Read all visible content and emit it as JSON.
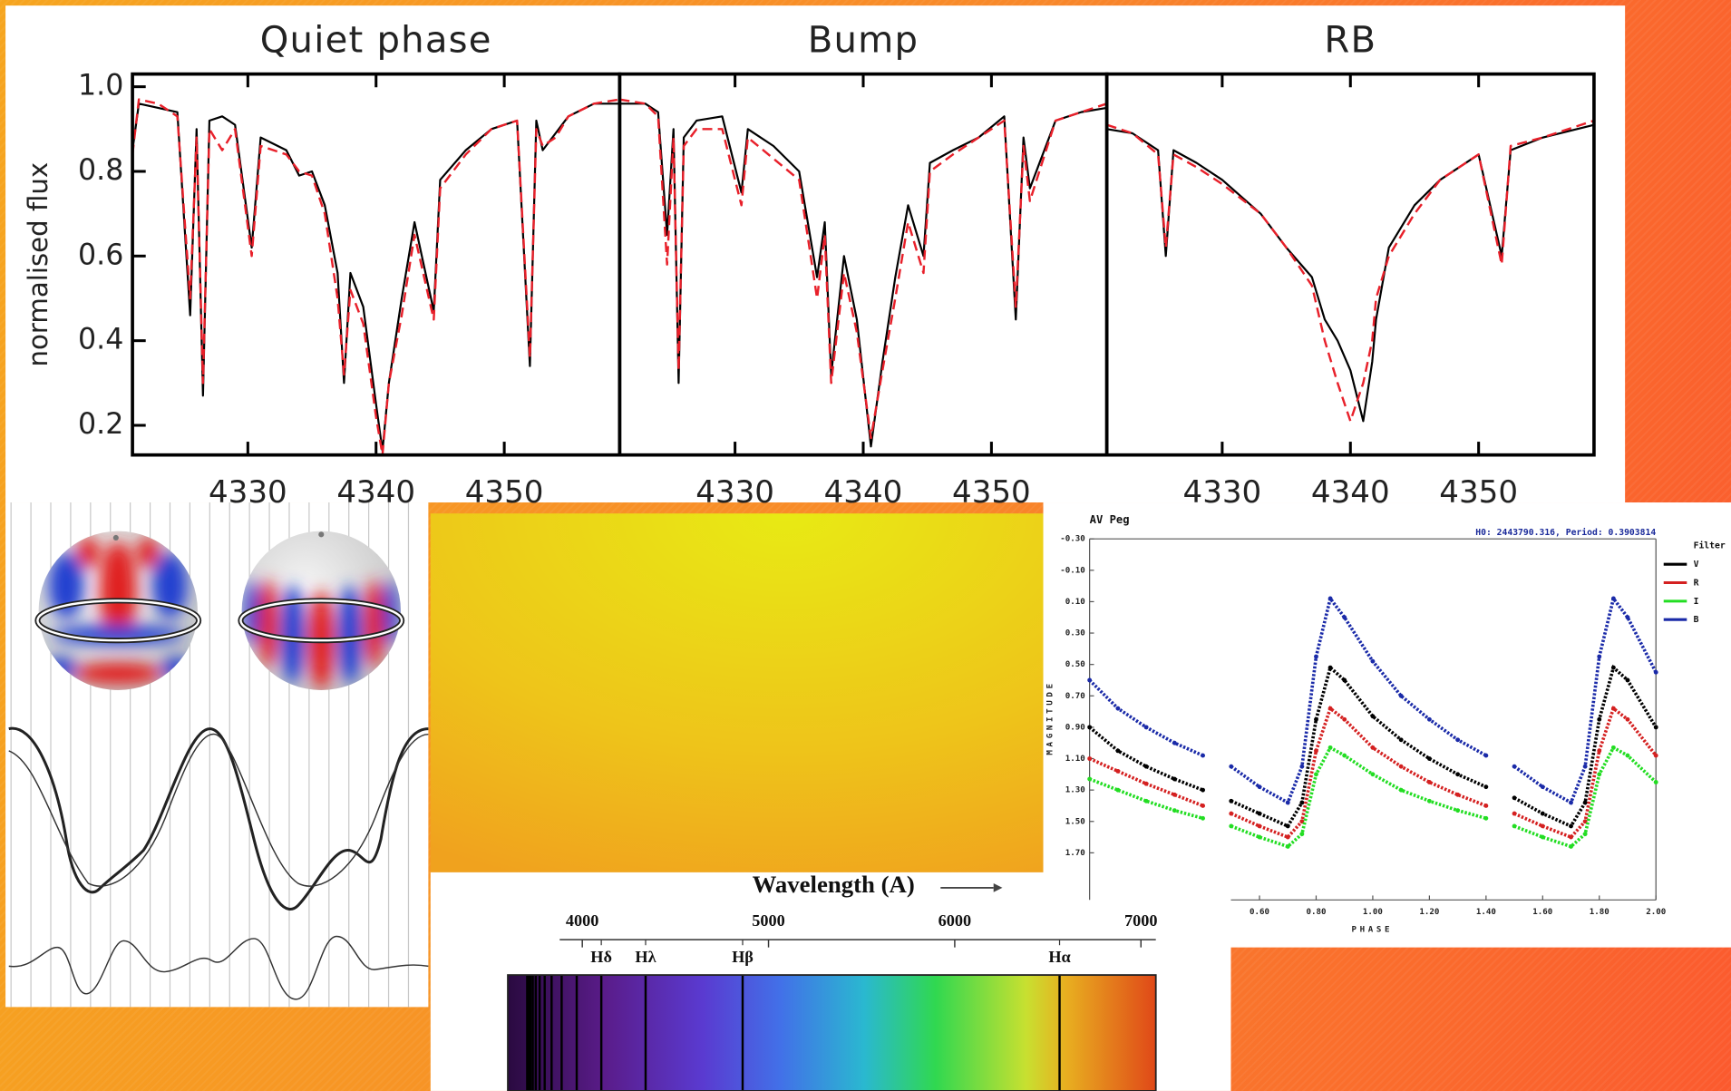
{
  "chart_data": [
    {
      "type": "line",
      "title": "Quiet phase",
      "ylabel": "normalised flux",
      "xlim": [
        4321,
        4359
      ],
      "ylim": [
        0.13,
        1.03
      ],
      "xticks": [
        4330,
        4340,
        4350
      ],
      "yticks": [
        0.2,
        0.4,
        0.6,
        0.8,
        {
          "value": 1,
          "label": "1.0"
        }
      ],
      "x": [
        4321,
        4321.5,
        4323,
        4324.5,
        4325.5,
        4326,
        4326.5,
        4327,
        4328,
        4329,
        4330.3,
        4331,
        4333,
        4334,
        4335,
        4336,
        4337,
        4337.5,
        4338,
        4339,
        4340,
        4340.5,
        4341,
        4342,
        4343,
        4344.5,
        4345,
        4347,
        4349,
        4351,
        4352,
        4352.5,
        4353,
        4354,
        4355,
        4357,
        4359
      ],
      "series": [
        {
          "color": "#000000",
          "values": [
            0.85,
            0.96,
            0.95,
            0.94,
            0.46,
            0.9,
            0.27,
            0.92,
            0.93,
            0.91,
            0.62,
            0.88,
            0.85,
            0.79,
            0.8,
            0.72,
            0.56,
            0.3,
            0.56,
            0.48,
            0.25,
            0.14,
            0.3,
            0.5,
            0.68,
            0.47,
            0.78,
            0.85,
            0.9,
            0.92,
            0.34,
            0.92,
            0.85,
            0.89,
            0.93,
            0.96,
            0.96
          ]
        },
        {
          "color": "#e8202a",
          "dashed": true,
          "values": [
            0.84,
            0.97,
            0.96,
            0.93,
            0.5,
            0.88,
            0.3,
            0.9,
            0.85,
            0.9,
            0.6,
            0.86,
            0.84,
            0.8,
            0.79,
            0.7,
            0.5,
            0.32,
            0.52,
            0.44,
            0.22,
            0.13,
            0.3,
            0.46,
            0.65,
            0.45,
            0.76,
            0.84,
            0.9,
            0.92,
            0.36,
            0.9,
            0.86,
            0.88,
            0.93,
            0.96,
            0.97
          ]
        }
      ]
    },
    {
      "type": "line",
      "title": "Bump",
      "xlim": [
        4321,
        4359
      ],
      "ylim": [
        0.13,
        1.03
      ],
      "xticks": [
        4330,
        4340,
        4350
      ],
      "x": [
        4321,
        4323,
        4324,
        4324.7,
        4325.2,
        4325.6,
        4326,
        4327,
        4329,
        4330.5,
        4331,
        4333,
        4335,
        4336.4,
        4337,
        4337.5,
        4338.5,
        4339.5,
        4340.6,
        4341.5,
        4342.5,
        4343.5,
        4344.7,
        4345.2,
        4347,
        4349,
        4351,
        4351.9,
        4352.5,
        4353,
        4355,
        4357,
        4359
      ],
      "series": [
        {
          "color": "#000000",
          "values": [
            0.96,
            0.96,
            0.94,
            0.65,
            0.9,
            0.3,
            0.88,
            0.92,
            0.93,
            0.75,
            0.9,
            0.86,
            0.8,
            0.55,
            0.68,
            0.32,
            0.6,
            0.45,
            0.15,
            0.35,
            0.55,
            0.72,
            0.6,
            0.82,
            0.85,
            0.88,
            0.93,
            0.45,
            0.88,
            0.76,
            0.92,
            0.94,
            0.95
          ]
        },
        {
          "color": "#e8202a",
          "dashed": true,
          "values": [
            0.97,
            0.96,
            0.93,
            0.58,
            0.88,
            0.33,
            0.86,
            0.9,
            0.9,
            0.72,
            0.88,
            0.83,
            0.78,
            0.5,
            0.65,
            0.3,
            0.56,
            0.42,
            0.17,
            0.33,
            0.5,
            0.68,
            0.56,
            0.8,
            0.84,
            0.88,
            0.92,
            0.48,
            0.86,
            0.73,
            0.92,
            0.94,
            0.96
          ]
        }
      ]
    },
    {
      "type": "line",
      "title": "RB",
      "xlim": [
        4321,
        4359
      ],
      "ylim": [
        0.13,
        1.03
      ],
      "xticks": [
        4330,
        4340,
        4350
      ],
      "x": [
        4321,
        4323,
        4325,
        4325.6,
        4326.2,
        4328,
        4330,
        4333,
        4335,
        4337,
        4338,
        4339,
        4340,
        4341,
        4341.7,
        4342,
        4343,
        4345,
        4347,
        4350,
        4351.8,
        4352.5,
        4355,
        4359
      ],
      "series": [
        {
          "color": "#000000",
          "values": [
            0.9,
            0.89,
            0.85,
            0.6,
            0.85,
            0.82,
            0.78,
            0.7,
            0.62,
            0.55,
            0.45,
            0.4,
            0.33,
            0.21,
            0.35,
            0.45,
            0.62,
            0.72,
            0.78,
            0.84,
            0.6,
            0.85,
            0.88,
            0.91
          ]
        },
        {
          "color": "#e8202a",
          "dashed": true,
          "values": [
            0.91,
            0.89,
            0.84,
            0.62,
            0.84,
            0.81,
            0.77,
            0.7,
            0.62,
            0.53,
            0.4,
            0.3,
            0.21,
            0.3,
            0.4,
            0.5,
            0.6,
            0.7,
            0.78,
            0.84,
            0.58,
            0.86,
            0.88,
            0.92
          ]
        }
      ]
    },
    {
      "type": "scatter",
      "title": "AV Peg",
      "subtitle": "H0: 2443790.316, Period: 0.3903814",
      "xlabel": "PHASE",
      "ylabel": "MAGNITUDE",
      "legend_title": "Filter",
      "y_inverted": true,
      "xlim": [
        0,
        2
      ],
      "ylim": [
        -0.3,
        2
      ],
      "xticks": [
        {
          "value": 0.6,
          "label": "0.60"
        },
        {
          "value": 0.8,
          "label": "0.80"
        },
        {
          "value": 1,
          "label": "1.00"
        },
        {
          "value": 1.2,
          "label": "1.20"
        },
        {
          "value": 1.4,
          "label": "1.40"
        },
        {
          "value": 1.6,
          "label": "1.60"
        },
        {
          "value": 1.8,
          "label": "1.80"
        },
        {
          "value": 2,
          "label": "2.00"
        }
      ],
      "yticks": [
        {
          "value": -0.3,
          "label": "-0.30"
        },
        {
          "value": -0.1,
          "label": "-0.10"
        },
        {
          "value": 0.1,
          "label": "0.10"
        },
        {
          "value": 0.3,
          "label": "0.30"
        },
        {
          "value": 0.5,
          "label": "0.50"
        },
        {
          "value": 0.7,
          "label": "0.70"
        },
        {
          "value": 0.9,
          "label": "0.90"
        },
        {
          "value": 1.1,
          "label": "1.10"
        },
        {
          "value": 1.3,
          "label": "1.30"
        },
        {
          "value": 1.5,
          "label": "1.50"
        },
        {
          "value": 1.7,
          "label": "1.70"
        }
      ],
      "x": [
        0,
        0.1,
        0.2,
        0.3,
        0.4,
        0.45,
        0.5,
        0.6,
        0.7,
        0.75,
        0.8,
        0.85,
        0.9,
        1,
        1.1,
        1.2,
        1.3,
        1.4,
        1.45,
        1.5,
        1.6,
        1.7,
        1.75,
        1.8,
        1.85,
        1.9,
        2
      ],
      "series": [
        {
          "name": "V",
          "color": "#000000",
          "values": [
            0.9,
            1.05,
            1.15,
            1.23,
            1.3,
            null,
            1.37,
            1.45,
            1.53,
            1.38,
            0.85,
            0.52,
            0.6,
            0.83,
            0.98,
            1.1,
            1.2,
            1.28,
            null,
            1.35,
            1.45,
            1.53,
            1.38,
            0.85,
            0.52,
            0.6,
            0.9
          ]
        },
        {
          "name": "R",
          "color": "#d42020",
          "values": [
            1.1,
            1.18,
            1.26,
            1.33,
            1.4,
            null,
            1.45,
            1.53,
            1.6,
            1.5,
            1.05,
            0.78,
            0.85,
            1.03,
            1.15,
            1.25,
            1.33,
            1.4,
            null,
            1.45,
            1.53,
            1.6,
            1.5,
            1.05,
            0.78,
            0.85,
            1.08
          ]
        },
        {
          "name": "I",
          "color": "#22dd22",
          "values": [
            1.23,
            1.3,
            1.37,
            1.43,
            1.48,
            null,
            1.53,
            1.6,
            1.66,
            1.58,
            1.2,
            1.03,
            1.08,
            1.2,
            1.3,
            1.37,
            1.43,
            1.48,
            null,
            1.53,
            1.6,
            1.66,
            1.58,
            1.2,
            1.03,
            1.08,
            1.25
          ]
        },
        {
          "name": "B",
          "color": "#1a2aa8",
          "values": [
            0.6,
            0.78,
            0.9,
            1,
            1.08,
            null,
            1.15,
            1.28,
            1.38,
            1.15,
            0.45,
            0.08,
            0.2,
            0.48,
            0.7,
            0.85,
            0.98,
            1.08,
            null,
            1.15,
            1.28,
            1.38,
            1.15,
            0.45,
            0.08,
            0.2,
            0.55
          ]
        }
      ]
    },
    {
      "type": "spectrum",
      "xlabel": "Wavelength (A)",
      "xlim": [
        3600,
        7080
      ],
      "xticks": [
        4000,
        5000,
        6000,
        7000
      ],
      "lines": [
        3704,
        3712,
        3722,
        3734,
        3750,
        3771,
        3798,
        3835,
        3889,
        3970,
        4102,
        4340,
        4861,
        6563
      ],
      "line_labels": [
        null,
        null,
        null,
        null,
        null,
        null,
        null,
        null,
        null,
        null,
        "Hδ",
        "Hλ",
        "Hβ",
        "Hα"
      ]
    }
  ]
}
